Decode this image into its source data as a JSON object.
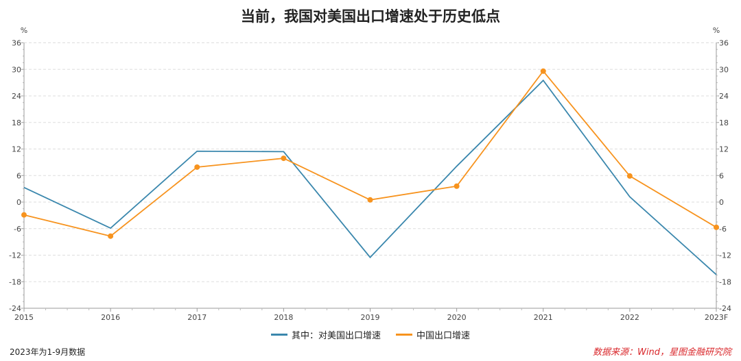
{
  "chart_data": {
    "type": "line",
    "title": "当前，我国对美国出口增速处于历史低点",
    "ylabel_left": "%",
    "ylabel_right": "%",
    "ylim": [
      -24,
      36
    ],
    "yticks": [
      36,
      30,
      24,
      18,
      12,
      6,
      0,
      -6,
      -12,
      -18,
      -24
    ],
    "categories": [
      "2015",
      "2016",
      "2017",
      "2018",
      "2019",
      "2020",
      "2021",
      "2022",
      "2023F"
    ],
    "grid": true,
    "legend_position": "bottom",
    "series": [
      {
        "name": "其中：对美国出口增速",
        "color": "#3a87ad",
        "markers": false,
        "values": [
          3.3,
          -5.9,
          11.5,
          11.4,
          -12.5,
          8.1,
          27.5,
          1.2,
          -16.4
        ]
      },
      {
        "name": "中国出口增速",
        "color": "#f7931e",
        "markers": true,
        "values": [
          -2.9,
          -7.7,
          7.9,
          9.9,
          0.5,
          3.6,
          29.6,
          5.9,
          -5.7
        ]
      }
    ]
  },
  "footer": {
    "note": "2023年为1-9月数据",
    "source": "数据来源：Wind，星图金融研究院"
  }
}
